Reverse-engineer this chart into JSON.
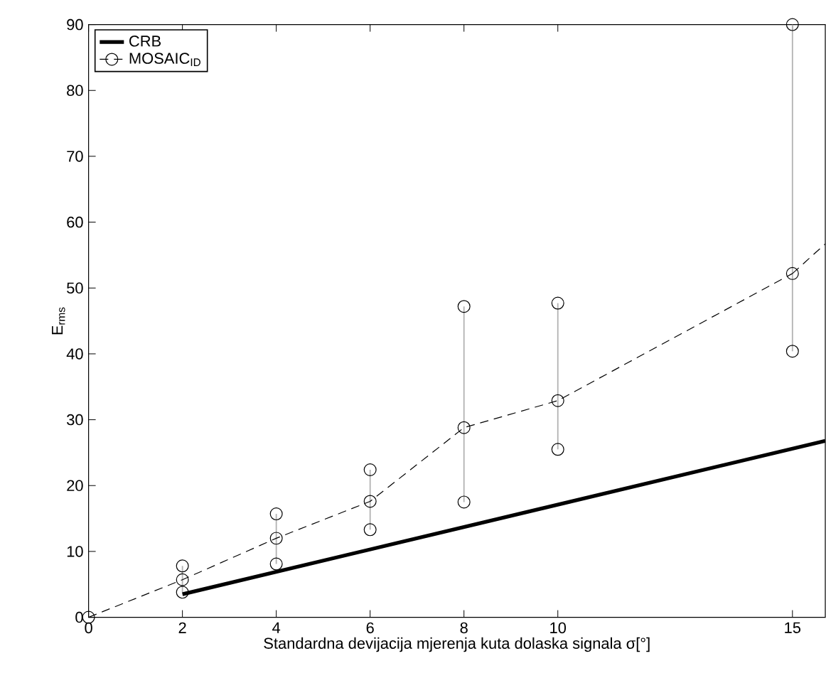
{
  "chart_data": {
    "type": "line",
    "xlabel": "Standardna devijacija mjerenja kuta dolaska signala σ[°]",
    "ylabel": "E$_{rms}$",
    "xlim": [
      0,
      15.7
    ],
    "ylim": [
      0,
      90
    ],
    "xticks": [
      0,
      2,
      4,
      6,
      8,
      10,
      15
    ],
    "yticks": [
      0,
      10,
      20,
      30,
      40,
      50,
      60,
      70,
      80,
      90
    ],
    "legend": "top left",
    "grid": false,
    "series": [
      {
        "name": "CRB",
        "color": "#000000",
        "x": [
          2,
          15.7
        ],
        "values": [
          3.5,
          26.8
        ],
        "line_style": "solid"
      },
      {
        "name": "MOSAIC$_{ID}$",
        "color": "#000000",
        "x": [
          0,
          2,
          4,
          6,
          8,
          10,
          15
        ],
        "values": [
          0,
          5.7,
          12.0,
          17.6,
          28.8,
          32.9,
          52.2
        ],
        "line_style": "dashed",
        "marker": "circle",
        "errors": [
          null,
          [
            3.8,
            7.8
          ],
          [
            8.1,
            15.7
          ],
          [
            13.3,
            22.4
          ],
          [
            17.5,
            47.2
          ],
          [
            25.5,
            47.7
          ],
          [
            40.4,
            90
          ]
        ]
      },
      {
        "color": "#000000",
        "x": [
          15,
          15.7
        ],
        "values": [
          52.2,
          56.7
        ],
        "line_style": "dashed"
      },
      {
        "type": "scatter",
        "color": "#000000",
        "x": [
          2,
          4,
          6,
          8,
          10,
          15
        ],
        "values": [
          3.8,
          8.1,
          13.3,
          17.5,
          25.5,
          40.4
        ],
        "marker": "circle"
      },
      {
        "type": "scatter",
        "color": "#000000",
        "x": [
          2,
          4,
          6,
          8,
          10,
          15
        ],
        "values": [
          7.8,
          15.7,
          22.4,
          47.2,
          47.7,
          90
        ],
        "marker": "circle"
      }
    ]
  }
}
